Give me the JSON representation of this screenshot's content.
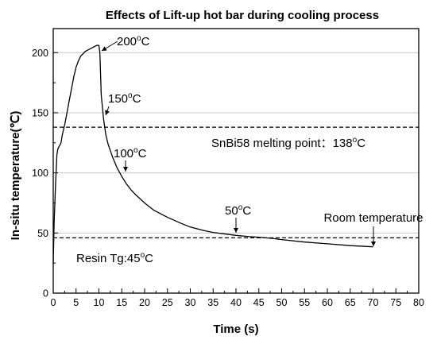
{
  "chart_data": {
    "type": "line",
    "title": "Effects of Lift-up hot bar during cooling process",
    "xlabel": "Time (s)",
    "ylabel": "In-situ temperature(℃)",
    "xlim": [
      0,
      80
    ],
    "ylim": [
      0,
      220
    ],
    "xticks": [
      0,
      5,
      10,
      15,
      20,
      25,
      30,
      35,
      40,
      45,
      50,
      55,
      60,
      65,
      70,
      75,
      80
    ],
    "yticks": [
      0,
      50,
      100,
      150,
      200
    ],
    "grid": "horizontal",
    "series": [
      {
        "x": [
          0,
          0.2,
          0.5,
          0.8,
          1,
          1.3,
          1.7,
          2,
          2.5,
          3,
          3.5,
          4,
          4.5,
          5,
          5.5,
          6,
          6.5,
          7,
          7.5,
          8,
          8.5,
          9,
          9.5,
          10,
          10.2,
          10.5,
          11,
          11.5,
          12,
          13,
          14,
          15,
          16,
          17,
          18,
          20,
          22,
          25,
          28,
          30,
          33,
          35,
          38,
          40,
          43,
          45,
          48,
          50,
          55,
          60,
          65,
          70
        ],
        "y": [
          25,
          60,
          90,
          115,
          120,
          122,
          125,
          132,
          140,
          150,
          160,
          170,
          180,
          188,
          193,
          197,
          199,
          201,
          202,
          203,
          204,
          205,
          206,
          206,
          200,
          165,
          145,
          132,
          124,
          113,
          104,
          97,
          91,
          86,
          82,
          75,
          69,
          63,
          58,
          55,
          52,
          50.5,
          49,
          48,
          47,
          46.5,
          45.5,
          44.5,
          42.5,
          41,
          39.5,
          38.5
        ]
      }
    ],
    "reference_lines": [
      {
        "y": 138,
        "style": "dashed"
      },
      {
        "y": 46,
        "style": "dashed"
      }
    ],
    "annotations": [
      {
        "text": "200",
        "unit": "C",
        "sup": "o",
        "x": 10,
        "y": 206
      },
      {
        "text": "150",
        "unit": "C",
        "sup": "o",
        "x": 11.5,
        "y": 150
      },
      {
        "text": "100",
        "unit": "C",
        "sup": "o",
        "x": 16,
        "y": 100
      },
      {
        "text": "50",
        "unit": "C",
        "sup": "o",
        "x": 40,
        "y": 50
      },
      {
        "text": "Room temperature",
        "unit": "",
        "sup": "",
        "x": 70,
        "y": 46
      },
      {
        "text": "SnBi58 melting point：138",
        "unit": "C",
        "sup": "o",
        "x": 35,
        "y": 138
      },
      {
        "text": "Resin Tg:45",
        "unit": "C",
        "sup": "o",
        "x": 5,
        "y": 46
      }
    ]
  }
}
